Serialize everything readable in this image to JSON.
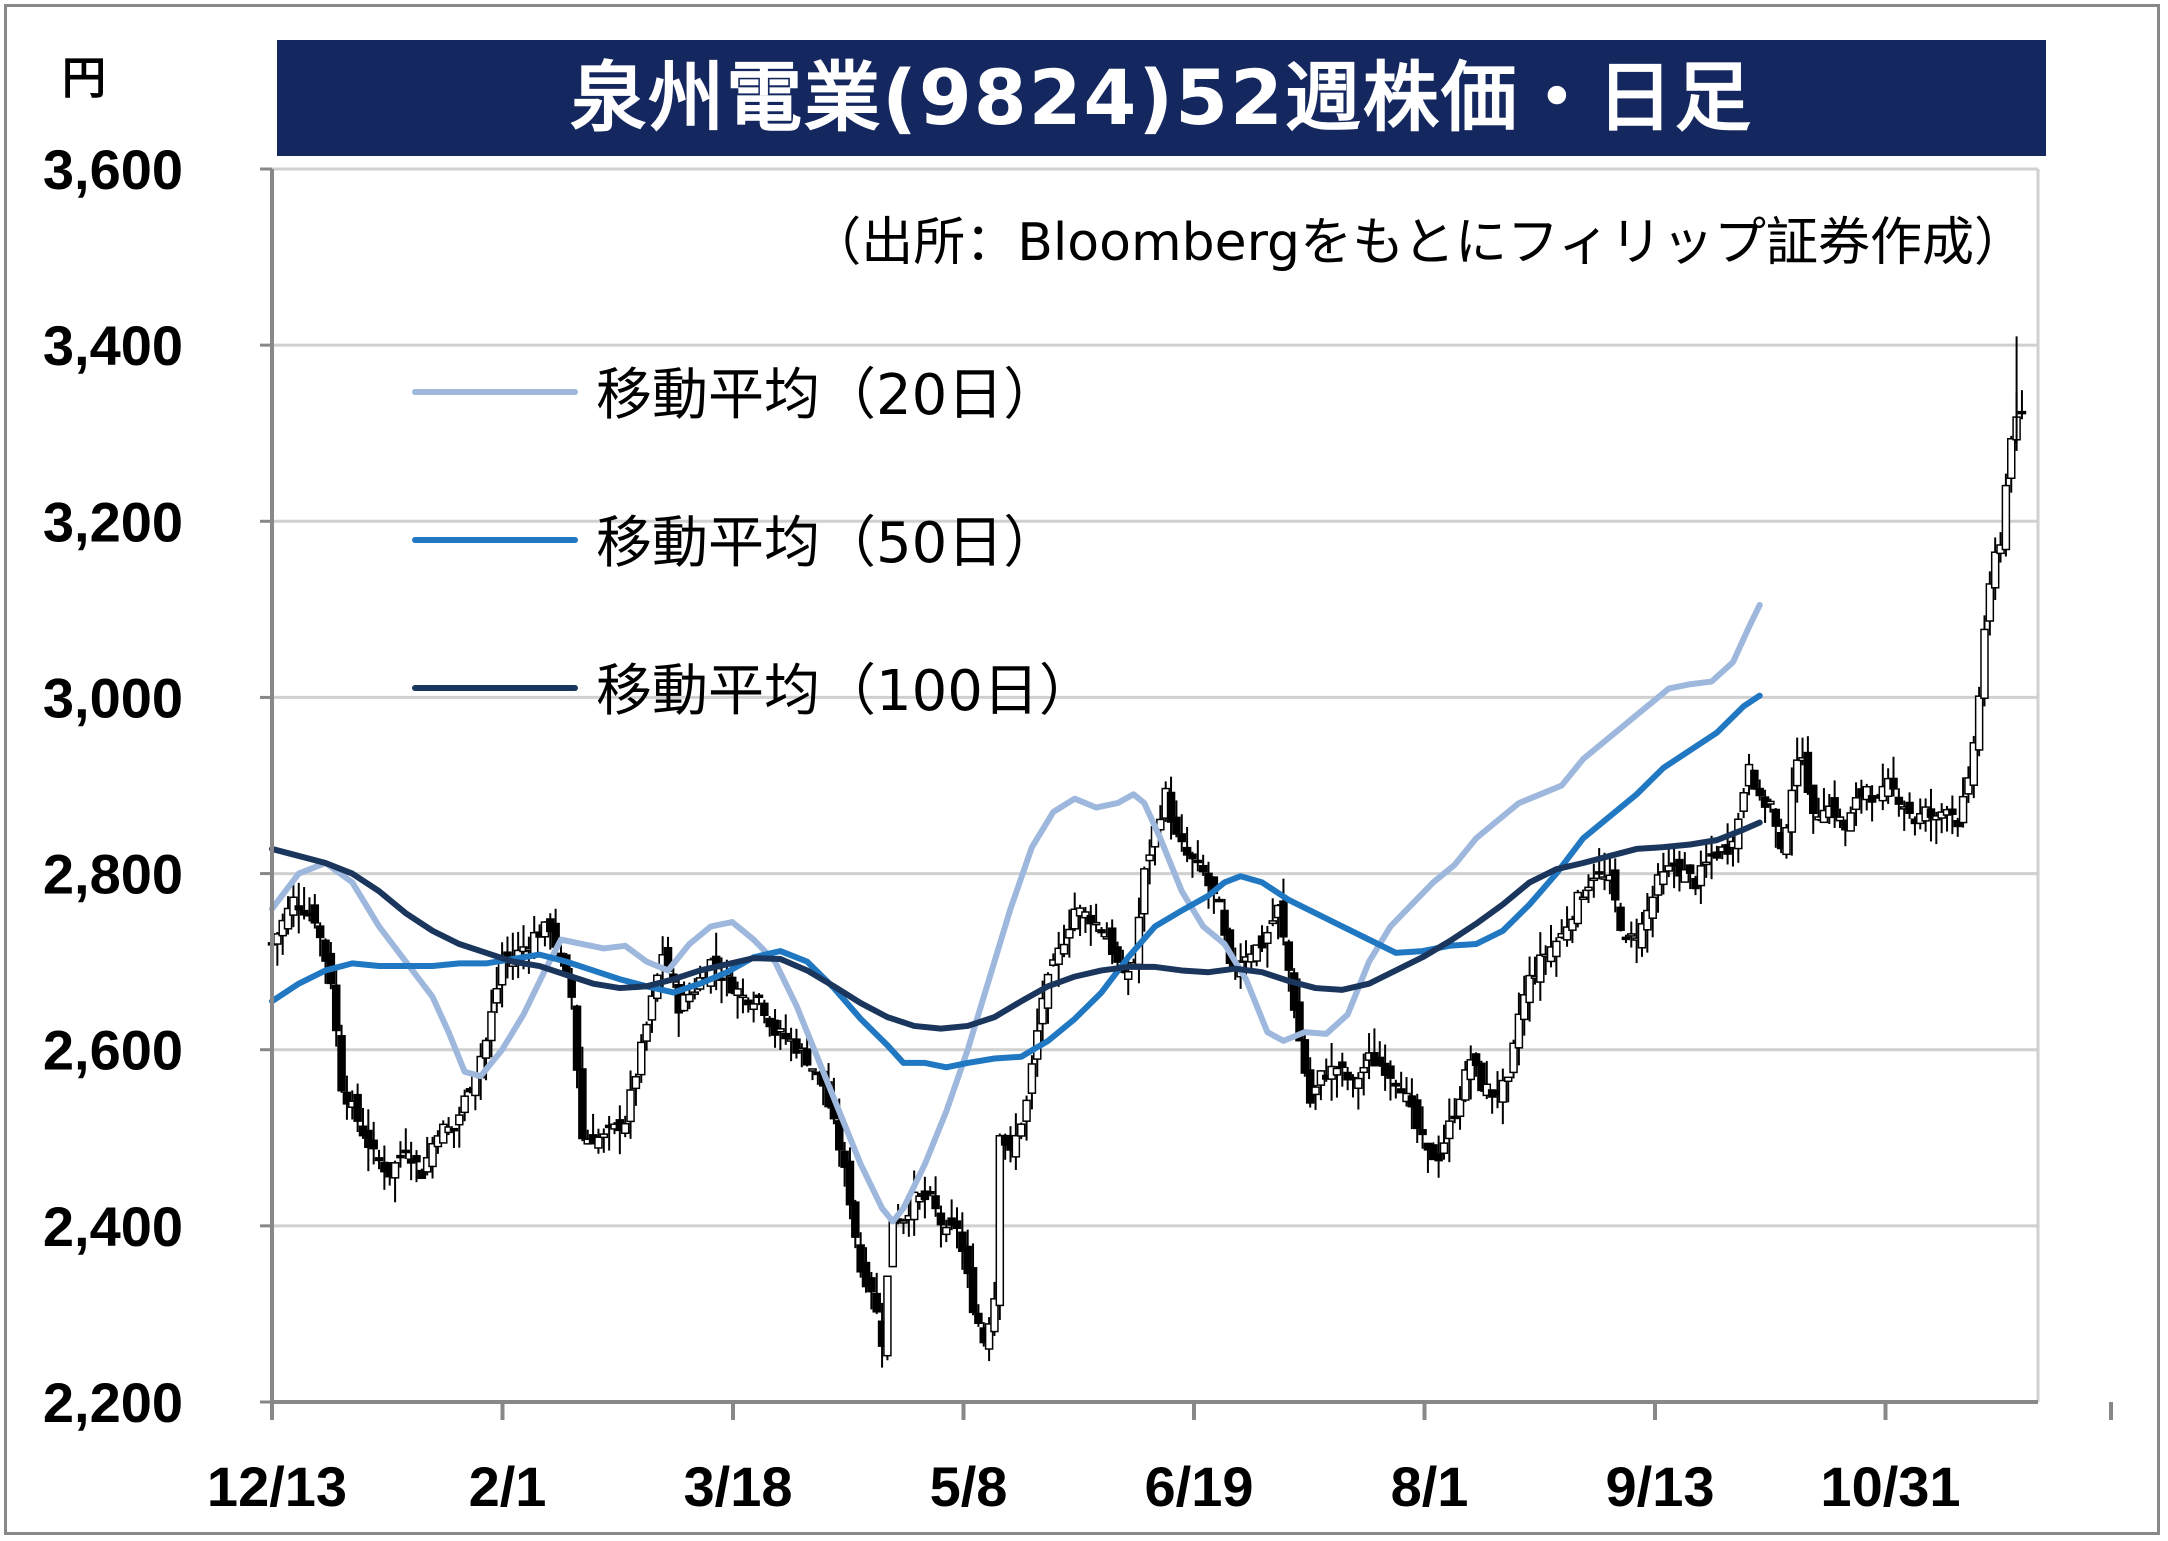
{
  "chart_data": {
    "type": "candlestick",
    "title": "泉州電業(9824)52週株価・日足",
    "unit": "円",
    "source": "（出所：Bloombergをもとにフィリップ証券作成）",
    "ylim": [
      2200,
      3600
    ],
    "yticks": [
      "2,200",
      "2,400",
      "2,600",
      "2,800",
      "3,000",
      "3,200",
      "3,400",
      "3,600"
    ],
    "ytick_values": [
      2200,
      2400,
      2600,
      2800,
      3000,
      3200,
      3400,
      3600
    ],
    "xticks": [
      "12/13",
      "2/1",
      "3/18",
      "5/8",
      "6/19",
      "8/1",
      "9/13",
      "10/31"
    ],
    "grid": true,
    "legend_position": "top-left",
    "colors": {
      "title_bg": "#14275f",
      "ma20": "#9db7dd",
      "ma50": "#1f78c1",
      "ma100": "#1b365d",
      "grid": "#d0d0d0",
      "axis": "#888888"
    },
    "series": [
      {
        "name": "移動平均（20日）",
        "points": [
          [
            0,
            2760
          ],
          [
            10,
            2800
          ],
          [
            20,
            2812
          ],
          [
            30,
            2790
          ],
          [
            40,
            2740
          ],
          [
            50,
            2700
          ],
          [
            60,
            2660
          ],
          [
            66,
            2620
          ],
          [
            72,
            2575
          ],
          [
            78,
            2570
          ],
          [
            86,
            2600
          ],
          [
            94,
            2640
          ],
          [
            102,
            2690
          ],
          [
            108,
            2725
          ],
          [
            116,
            2720
          ],
          [
            124,
            2715
          ],
          [
            132,
            2718
          ],
          [
            140,
            2700
          ],
          [
            148,
            2690
          ],
          [
            156,
            2720
          ],
          [
            164,
            2740
          ],
          [
            172,
            2745
          ],
          [
            180,
            2725
          ],
          [
            188,
            2700
          ],
          [
            196,
            2650
          ],
          [
            204,
            2590
          ],
          [
            212,
            2530
          ],
          [
            220,
            2470
          ],
          [
            228,
            2420
          ],
          [
            232,
            2405
          ],
          [
            236,
            2420
          ],
          [
            244,
            2470
          ],
          [
            252,
            2530
          ],
          [
            260,
            2600
          ],
          [
            268,
            2680
          ],
          [
            276,
            2760
          ],
          [
            284,
            2830
          ],
          [
            292,
            2870
          ],
          [
            300,
            2885
          ],
          [
            308,
            2875
          ],
          [
            316,
            2880
          ],
          [
            322,
            2890
          ],
          [
            326,
            2880
          ],
          [
            332,
            2840
          ],
          [
            340,
            2780
          ],
          [
            348,
            2740
          ],
          [
            356,
            2720
          ],
          [
            364,
            2680
          ],
          [
            372,
            2620
          ],
          [
            378,
            2610
          ],
          [
            386,
            2620
          ],
          [
            394,
            2618
          ],
          [
            402,
            2640
          ],
          [
            410,
            2700
          ],
          [
            418,
            2740
          ],
          [
            426,
            2765
          ],
          [
            434,
            2790
          ],
          [
            442,
            2810
          ],
          [
            450,
            2840
          ],
          [
            458,
            2860
          ],
          [
            466,
            2880
          ],
          [
            474,
            2890
          ],
          [
            482,
            2900
          ],
          [
            490,
            2930
          ],
          [
            498,
            2950
          ],
          [
            506,
            2970
          ],
          [
            514,
            2990
          ],
          [
            522,
            3010
          ],
          [
            530,
            3015
          ],
          [
            538,
            3018
          ],
          [
            546,
            3040
          ],
          [
            552,
            3080
          ],
          [
            556,
            3105
          ]
        ]
      },
      {
        "name": "移動平均（50日）",
        "points": [
          [
            0,
            2655
          ],
          [
            10,
            2675
          ],
          [
            20,
            2690
          ],
          [
            30,
            2698
          ],
          [
            40,
            2695
          ],
          [
            50,
            2695
          ],
          [
            60,
            2695
          ],
          [
            70,
            2698
          ],
          [
            80,
            2698
          ],
          [
            90,
            2703
          ],
          [
            100,
            2708
          ],
          [
            110,
            2700
          ],
          [
            120,
            2690
          ],
          [
            130,
            2680
          ],
          [
            140,
            2672
          ],
          [
            150,
            2665
          ],
          [
            160,
            2675
          ],
          [
            170,
            2688
          ],
          [
            180,
            2705
          ],
          [
            190,
            2712
          ],
          [
            200,
            2700
          ],
          [
            210,
            2670
          ],
          [
            220,
            2635
          ],
          [
            230,
            2605
          ],
          [
            236,
            2585
          ],
          [
            244,
            2585
          ],
          [
            252,
            2580
          ],
          [
            260,
            2585
          ],
          [
            270,
            2590
          ],
          [
            280,
            2592
          ],
          [
            290,
            2610
          ],
          [
            300,
            2635
          ],
          [
            310,
            2665
          ],
          [
            320,
            2705
          ],
          [
            330,
            2740
          ],
          [
            340,
            2758
          ],
          [
            350,
            2775
          ],
          [
            356,
            2790
          ],
          [
            362,
            2797
          ],
          [
            370,
            2790
          ],
          [
            380,
            2770
          ],
          [
            390,
            2755
          ],
          [
            400,
            2740
          ],
          [
            410,
            2725
          ],
          [
            420,
            2710
          ],
          [
            430,
            2712
          ],
          [
            440,
            2718
          ],
          [
            450,
            2720
          ],
          [
            460,
            2735
          ],
          [
            470,
            2765
          ],
          [
            480,
            2800
          ],
          [
            490,
            2840
          ],
          [
            500,
            2865
          ],
          [
            510,
            2890
          ],
          [
            520,
            2920
          ],
          [
            530,
            2940
          ],
          [
            540,
            2960
          ],
          [
            550,
            2990
          ],
          [
            556,
            3002
          ]
        ]
      },
      {
        "name": "移動平均（100日）",
        "points": [
          [
            0,
            2828
          ],
          [
            10,
            2820
          ],
          [
            20,
            2812
          ],
          [
            30,
            2800
          ],
          [
            40,
            2780
          ],
          [
            50,
            2755
          ],
          [
            60,
            2735
          ],
          [
            70,
            2720
          ],
          [
            80,
            2710
          ],
          [
            90,
            2700
          ],
          [
            100,
            2695
          ],
          [
            110,
            2685
          ],
          [
            120,
            2675
          ],
          [
            130,
            2670
          ],
          [
            140,
            2672
          ],
          [
            150,
            2680
          ],
          [
            160,
            2690
          ],
          [
            170,
            2697
          ],
          [
            180,
            2704
          ],
          [
            190,
            2703
          ],
          [
            200,
            2690
          ],
          [
            210,
            2672
          ],
          [
            220,
            2653
          ],
          [
            230,
            2637
          ],
          [
            240,
            2627
          ],
          [
            250,
            2624
          ],
          [
            260,
            2627
          ],
          [
            270,
            2637
          ],
          [
            280,
            2655
          ],
          [
            290,
            2672
          ],
          [
            300,
            2683
          ],
          [
            310,
            2690
          ],
          [
            320,
            2694
          ],
          [
            330,
            2694
          ],
          [
            340,
            2690
          ],
          [
            350,
            2688
          ],
          [
            360,
            2692
          ],
          [
            370,
            2688
          ],
          [
            380,
            2678
          ],
          [
            390,
            2670
          ],
          [
            400,
            2668
          ],
          [
            410,
            2675
          ],
          [
            420,
            2690
          ],
          [
            430,
            2705
          ],
          [
            440,
            2723
          ],
          [
            450,
            2743
          ],
          [
            460,
            2765
          ],
          [
            470,
            2790
          ],
          [
            480,
            2805
          ],
          [
            490,
            2812
          ],
          [
            500,
            2820
          ],
          [
            510,
            2828
          ],
          [
            520,
            2830
          ],
          [
            530,
            2833
          ],
          [
            540,
            2838
          ],
          [
            550,
            2850
          ],
          [
            556,
            2858
          ]
        ]
      }
    ],
    "close_anchors": [
      [
        0,
        2720
      ],
      [
        8,
        2770
      ],
      [
        16,
        2750
      ],
      [
        22,
        2680
      ],
      [
        26,
        2560
      ],
      [
        32,
        2520
      ],
      [
        38,
        2480
      ],
      [
        44,
        2460
      ],
      [
        50,
        2490
      ],
      [
        56,
        2460
      ],
      [
        62,
        2510
      ],
      [
        68,
        2510
      ],
      [
        74,
        2560
      ],
      [
        80,
        2610
      ],
      [
        86,
        2700
      ],
      [
        92,
        2710
      ],
      [
        98,
        2730
      ],
      [
        104,
        2740
      ],
      [
        110,
        2680
      ],
      [
        112,
        2660
      ],
      [
        116,
        2500
      ],
      [
        124,
        2500
      ],
      [
        132,
        2520
      ],
      [
        138,
        2600
      ],
      [
        146,
        2710
      ],
      [
        152,
        2650
      ],
      [
        158,
        2670
      ],
      [
        164,
        2700
      ],
      [
        170,
        2680
      ],
      [
        176,
        2660
      ],
      [
        182,
        2660
      ],
      [
        188,
        2620
      ],
      [
        194,
        2610
      ],
      [
        200,
        2590
      ],
      [
        206,
        2560
      ],
      [
        212,
        2490
      ],
      [
        216,
        2430
      ],
      [
        220,
        2350
      ],
      [
        224,
        2330
      ],
      [
        228,
        2270
      ],
      [
        232,
        2410
      ],
      [
        236,
        2410
      ],
      [
        240,
        2430
      ],
      [
        246,
        2430
      ],
      [
        252,
        2390
      ],
      [
        256,
        2400
      ],
      [
        262,
        2310
      ],
      [
        266,
        2270
      ],
      [
        270,
        2320
      ],
      [
        272,
        2510
      ],
      [
        276,
        2480
      ],
      [
        282,
        2540
      ],
      [
        288,
        2660
      ],
      [
        294,
        2710
      ],
      [
        300,
        2760
      ],
      [
        306,
        2750
      ],
      [
        312,
        2730
      ],
      [
        318,
        2680
      ],
      [
        322,
        2700
      ],
      [
        326,
        2800
      ],
      [
        330,
        2850
      ],
      [
        334,
        2890
      ],
      [
        338,
        2840
      ],
      [
        342,
        2820
      ],
      [
        348,
        2800
      ],
      [
        354,
        2760
      ],
      [
        358,
        2690
      ],
      [
        364,
        2710
      ],
      [
        370,
        2720
      ],
      [
        376,
        2760
      ],
      [
        380,
        2690
      ],
      [
        384,
        2610
      ],
      [
        388,
        2540
      ],
      [
        392,
        2570
      ],
      [
        398,
        2580
      ],
      [
        404,
        2560
      ],
      [
        410,
        2590
      ],
      [
        416,
        2580
      ],
      [
        422,
        2560
      ],
      [
        428,
        2510
      ],
      [
        432,
        2480
      ],
      [
        436,
        2480
      ],
      [
        442,
        2530
      ],
      [
        448,
        2590
      ],
      [
        452,
        2560
      ],
      [
        456,
        2550
      ],
      [
        462,
        2560
      ],
      [
        466,
        2640
      ],
      [
        470,
        2680
      ],
      [
        476,
        2710
      ],
      [
        482,
        2730
      ],
      [
        488,
        2770
      ],
      [
        494,
        2800
      ],
      [
        500,
        2790
      ],
      [
        506,
        2720
      ],
      [
        512,
        2740
      ],
      [
        518,
        2790
      ],
      [
        524,
        2810
      ],
      [
        528,
        2800
      ],
      [
        532,
        2790
      ],
      [
        538,
        2820
      ],
      [
        544,
        2830
      ],
      [
        548,
        2860
      ],
      [
        552,
        2930
      ],
      [
        556,
        2880
      ],
      [
        560,
        2880
      ],
      [
        564,
        2820
      ],
      [
        568,
        2900
      ],
      [
        572,
        2940
      ],
      [
        576,
        2860
      ],
      [
        580,
        2880
      ],
      [
        584,
        2870
      ],
      [
        588,
        2850
      ],
      [
        592,
        2880
      ],
      [
        596,
        2900
      ],
      [
        600,
        2880
      ],
      [
        604,
        2900
      ],
      [
        610,
        2880
      ],
      [
        614,
        2860
      ],
      [
        618,
        2870
      ],
      [
        622,
        2860
      ],
      [
        626,
        2880
      ],
      [
        630,
        2860
      ],
      [
        634,
        2900
      ],
      [
        638,
        3000
      ],
      [
        640,
        3080
      ],
      [
        644,
        3160
      ],
      [
        646,
        3180
      ],
      [
        650,
        3300
      ],
      [
        654,
        3320
      ]
    ]
  },
  "legend": [
    {
      "label": "移動平均（20日）",
      "color": "#9db7dd"
    },
    {
      "label": "移動平均（50日）",
      "color": "#1f78c1"
    },
    {
      "label": "移動平均（100日）",
      "color": "#1b365d"
    }
  ]
}
